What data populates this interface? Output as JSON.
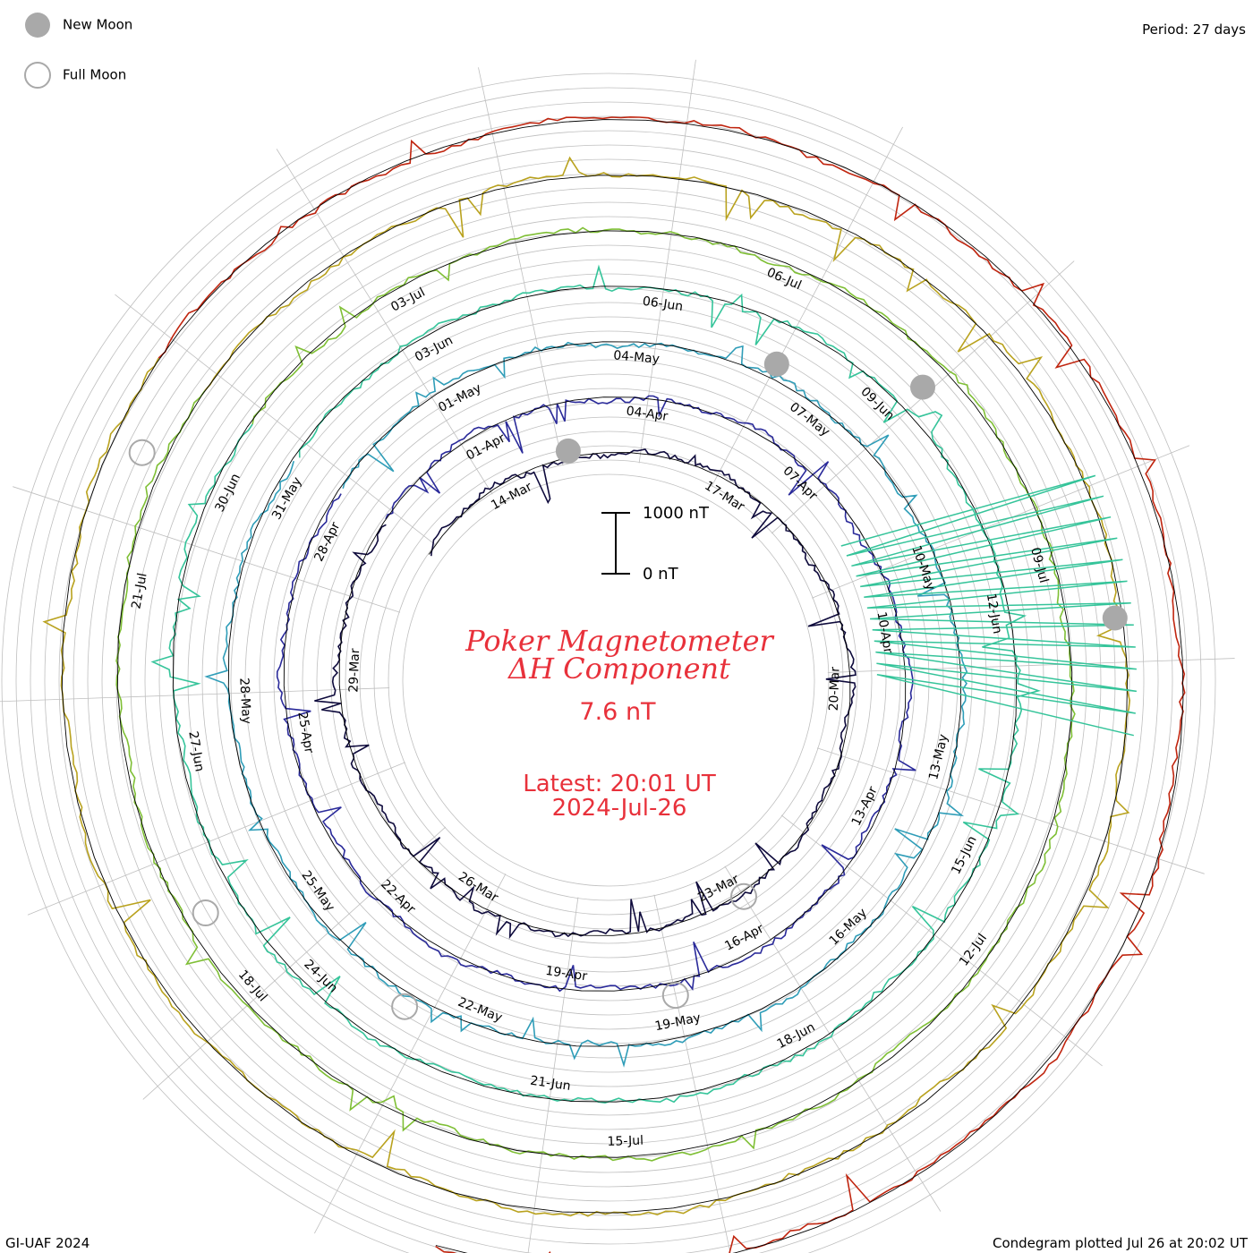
{
  "legend": {
    "new_moon": "New Moon",
    "full_moon": "Full Moon"
  },
  "period_label": "Period: 27 days",
  "title_line1": "Poker Magnetometer",
  "title_line2": "ΔH Component",
  "current_value": "7.6 nT",
  "latest_time": "Latest: 20:01 UT",
  "latest_date": "2024-Jul-26",
  "scale_bar": {
    "top_label": "1000 nT",
    "bottom_label": "0 nT"
  },
  "footer_left": "GI-UAF 2024",
  "footer_right": "Condegram plotted Jul 26 at 20:02 UT",
  "colors": {
    "title": "#e8313b",
    "grid": "#bfbfbf",
    "moon_fill": "#a9a9a9",
    "rotations": [
      "#0e0a3c",
      "#2a2a9a",
      "#2f9db8",
      "#35c49a",
      "#7fbf35",
      "#b9a21e",
      "#c0250f"
    ]
  },
  "chart_data": {
    "type": "condegram",
    "period_days": 27,
    "scale_nT": 1000,
    "rotations": [
      {
        "start": "2024-Mar-12",
        "date_ticks": [
          "14-Mar",
          "17-Mar",
          "20-Mar",
          "23-Mar",
          "26-Mar",
          "29-Mar"
        ]
      },
      {
        "start": "2024-Apr-07",
        "date_ticks": [
          "01-Apr",
          "04-Apr",
          "07-Apr",
          "10-Apr",
          "13-Apr",
          "16-Apr",
          "19-Apr",
          "22-Apr",
          "25-Apr",
          "28-Apr"
        ]
      },
      {
        "start": "2024-May-04",
        "date_ticks": [
          "01-May",
          "04-May",
          "07-May",
          "10-May",
          "13-May",
          "16-May",
          "19-May",
          "22-May",
          "25-May",
          "28-May",
          "31-May"
        ]
      },
      {
        "start": "2024-Jun-03",
        "date_ticks": [
          "03-Jun",
          "06-Jun",
          "09-Jun",
          "12-Jun",
          "15-Jun",
          "18-Jun",
          "21-Jun",
          "24-Jun",
          "27-Jun",
          "30-Jun"
        ]
      },
      {
        "start": "2024-Jul-03",
        "date_ticks": [
          "03-Jul",
          "06-Jul",
          "09-Jul",
          "12-Jul",
          "15-Jul",
          "18-Jul",
          "21-Jul"
        ]
      }
    ],
    "new_moons": [
      "2024-Apr-08",
      "2024-May-08",
      "2024-Jun-06",
      "2024-Jul-05"
    ],
    "full_moons": [
      "2024-Mar-25",
      "2024-Apr-23",
      "2024-May-23",
      "2024-Jun-22",
      "2024-Jul-21"
    ]
  }
}
